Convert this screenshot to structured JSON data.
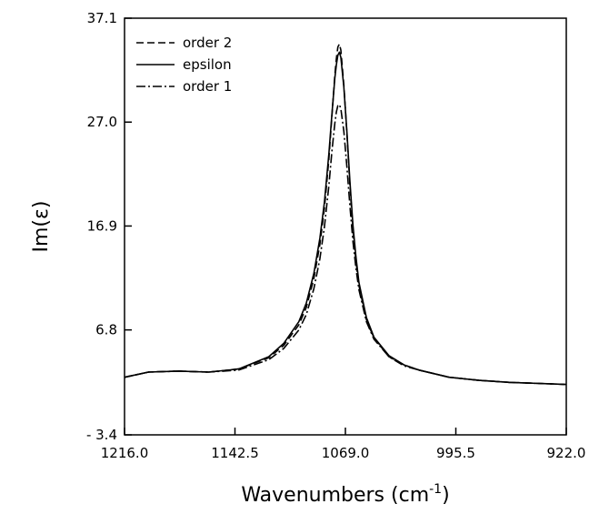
{
  "chart_data": {
    "type": "line",
    "title": "",
    "xlabel": "Wavenumbers (cm⁻¹)",
    "xlabel_parts": {
      "main": "Wavenumbers (cm",
      "sup": "-1",
      "close": ")"
    },
    "ylabel": "Im(ε)",
    "xlim": [
      1216.0,
      922.0
    ],
    "ylim": [
      -3.4,
      37.1
    ],
    "x_reversed": true,
    "x_ticks": [
      1216.0,
      1142.5,
      1069.0,
      995.5,
      922.0
    ],
    "x_tick_labels": [
      "1216.0",
      "1142.5",
      "1069.0",
      "995.5",
      "922.0"
    ],
    "y_ticks": [
      -3.4,
      6.8,
      16.9,
      27.0,
      37.1
    ],
    "y_tick_labels": [
      "- 3.4",
      "6.8",
      "16.9",
      "27.0",
      "37.1"
    ],
    "grid": false,
    "legend_position": "top-left",
    "series": [
      {
        "name": "order 2",
        "style": "dashed",
        "color": "#000000",
        "x": [
          1216,
          1200,
          1180,
          1160,
          1140,
          1120,
          1110,
          1100,
          1095,
          1090,
          1086,
          1083,
          1080,
          1078,
          1076,
          1075,
          1074,
          1073,
          1072,
          1070,
          1068,
          1066,
          1064,
          1062,
          1060,
          1055,
          1050,
          1040,
          1030,
          1020,
          1000,
          980,
          960,
          940,
          922
        ],
        "y": [
          2.2,
          2.7,
          2.8,
          2.7,
          3.0,
          4.1,
          5.3,
          7.3,
          9.0,
          11.8,
          15.1,
          18.6,
          23.4,
          27.5,
          31.6,
          33.2,
          34.3,
          34.6,
          34.0,
          30.6,
          25.8,
          20.8,
          16.6,
          13.5,
          11.1,
          7.8,
          6.0,
          4.2,
          3.4,
          2.9,
          2.2,
          1.9,
          1.7,
          1.6,
          1.5
        ]
      },
      {
        "name": "epsilon",
        "style": "solid",
        "color": "#000000",
        "x": [
          1216,
          1200,
          1180,
          1160,
          1140,
          1120,
          1110,
          1100,
          1095,
          1090,
          1086,
          1083,
          1080,
          1078,
          1076,
          1075,
          1074,
          1073,
          1072,
          1070,
          1068,
          1066,
          1064,
          1062,
          1060,
          1055,
          1050,
          1040,
          1030,
          1020,
          1000,
          980,
          960,
          940,
          922
        ],
        "y": [
          2.2,
          2.7,
          2.8,
          2.7,
          3.0,
          4.2,
          5.5,
          7.6,
          9.4,
          12.3,
          15.7,
          19.2,
          23.9,
          27.7,
          31.3,
          32.6,
          33.5,
          33.8,
          33.3,
          30.4,
          26.0,
          21.2,
          17.0,
          13.9,
          11.4,
          8.0,
          6.1,
          4.3,
          3.4,
          2.9,
          2.2,
          1.9,
          1.7,
          1.6,
          1.5
        ]
      },
      {
        "name": "order 1",
        "style": "dashdot",
        "color": "#000000",
        "x": [
          1216,
          1200,
          1180,
          1160,
          1140,
          1120,
          1110,
          1100,
          1095,
          1090,
          1086,
          1083,
          1080,
          1078,
          1076,
          1075,
          1074,
          1073,
          1072,
          1070,
          1068,
          1066,
          1064,
          1062,
          1060,
          1055,
          1050,
          1040,
          1030,
          1020,
          1000,
          980,
          960,
          940,
          922
        ],
        "y": [
          2.2,
          2.7,
          2.8,
          2.7,
          2.9,
          3.9,
          5.0,
          6.8,
          8.3,
          10.8,
          13.7,
          16.8,
          20.8,
          24.1,
          26.9,
          28.0,
          28.6,
          28.7,
          28.3,
          26.1,
          22.6,
          18.8,
          15.4,
          12.8,
          10.7,
          7.6,
          5.9,
          4.2,
          3.3,
          2.9,
          2.2,
          1.9,
          1.7,
          1.6,
          1.5
        ]
      }
    ]
  }
}
